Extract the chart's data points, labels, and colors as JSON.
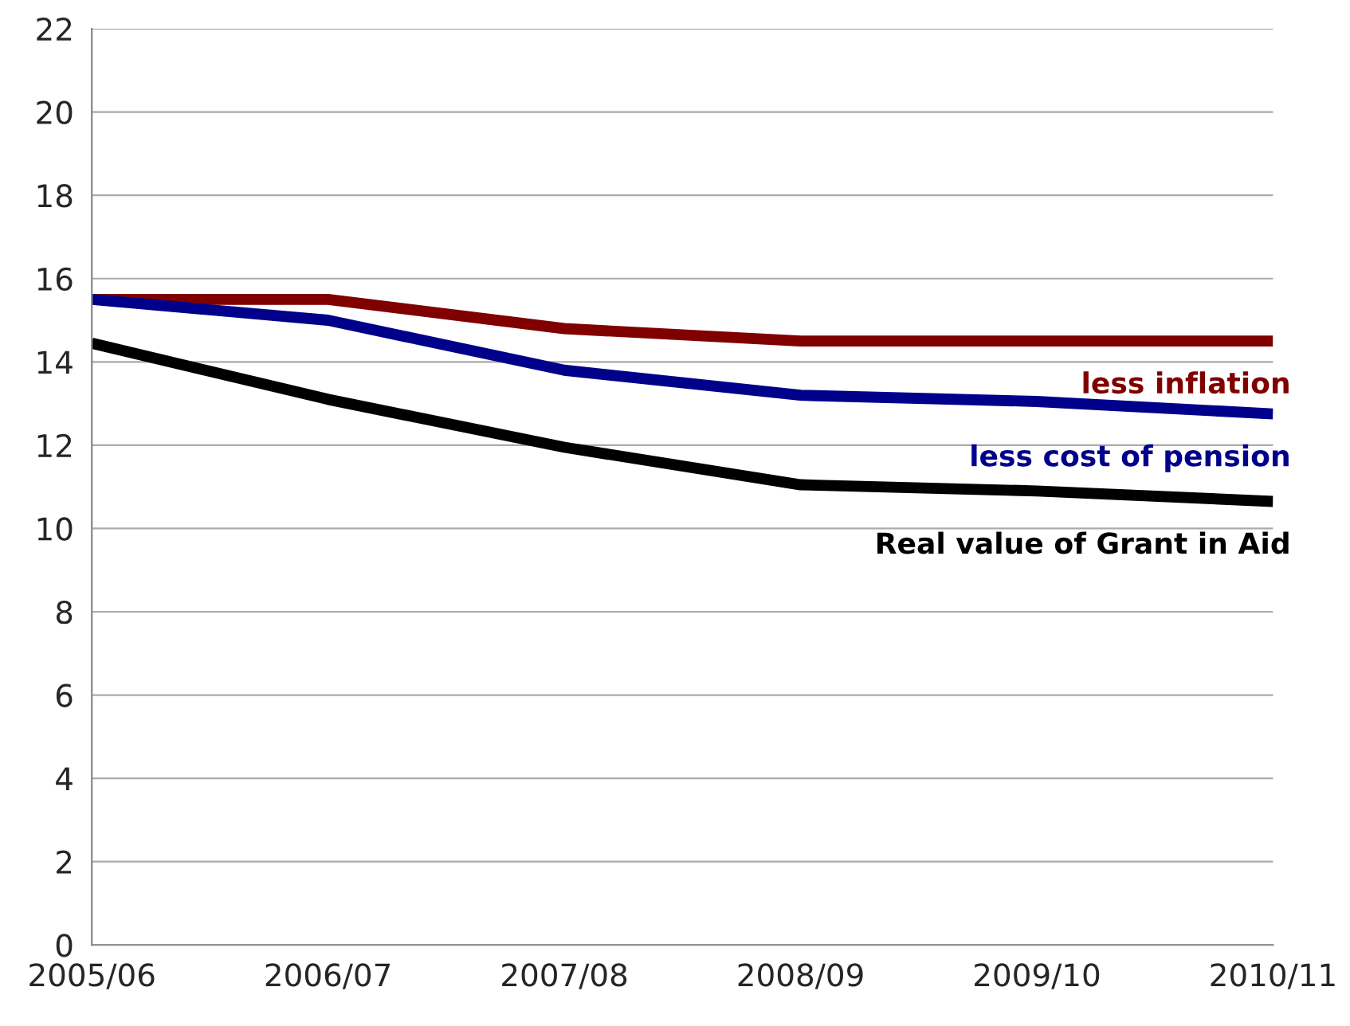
{
  "chart_data": {
    "type": "line",
    "categories": [
      "2005/06",
      "2006/07",
      "2007/08",
      "2008/09",
      "2009/10",
      "2010/11"
    ],
    "series": [
      {
        "name": "less inflation",
        "color": "#800000",
        "values": [
          15.5,
          15.5,
          14.8,
          14.5,
          14.5,
          14.5
        ]
      },
      {
        "name": "less cost of pension",
        "color": "#00008b",
        "values": [
          15.5,
          15.0,
          13.8,
          13.2,
          13.05,
          12.75
        ]
      },
      {
        "name": "Real value of Grant in Aid",
        "color": "#000000",
        "values": [
          14.45,
          13.1,
          11.95,
          11.05,
          10.9,
          10.65
        ]
      }
    ],
    "ylim": [
      0,
      22
    ],
    "yticks": [
      0,
      2,
      4,
      6,
      8,
      10,
      12,
      14,
      16,
      18,
      20,
      22
    ],
    "grid": "y",
    "legend": false,
    "marker": "none",
    "line_style": "solid"
  }
}
